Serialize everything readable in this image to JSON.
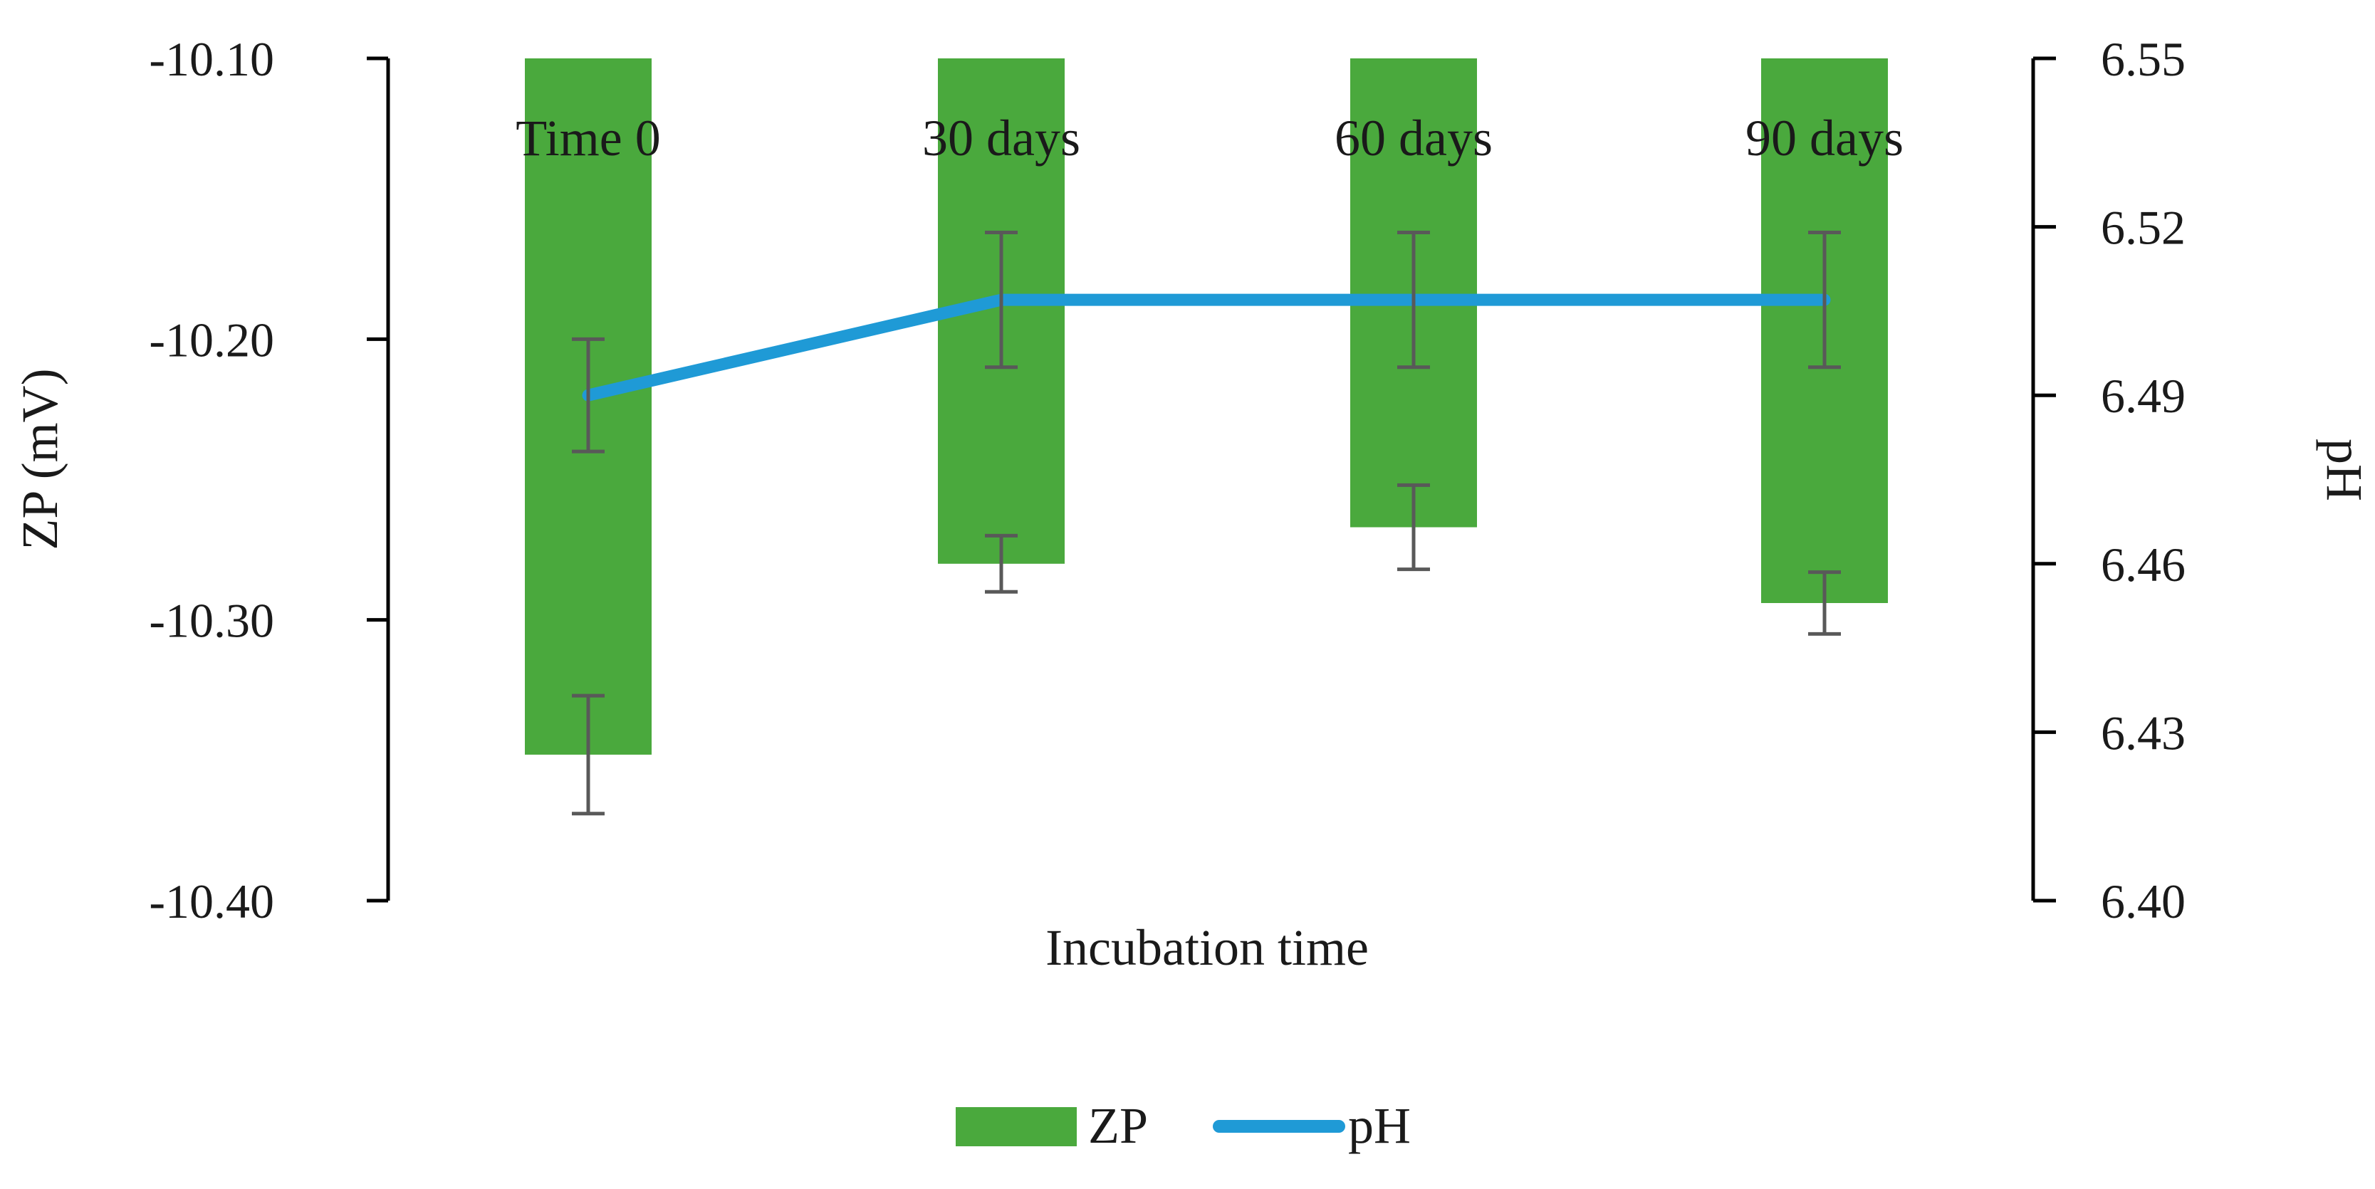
{
  "chart_data": {
    "type": "bar",
    "categories": [
      "Time 0",
      "30 days",
      "60 days",
      "90 days"
    ],
    "series": [
      {
        "name": "ZP",
        "kind": "bar",
        "axis": "left",
        "values": [
          -10.348,
          -10.28,
          -10.267,
          -10.294
        ],
        "error": [
          0.021,
          0.01,
          0.015,
          0.011
        ],
        "color": "#4aa93d"
      },
      {
        "name": "pH",
        "kind": "line",
        "axis": "right",
        "values": [
          6.49,
          6.507,
          6.507,
          6.507
        ],
        "error": [
          0.01,
          0.012,
          0.012,
          0.012
        ],
        "color": "#1f9ad6"
      }
    ],
    "y_left": {
      "label": "ZP (mV)",
      "range": [
        -10.4,
        -10.1
      ],
      "ticks": [
        -10.1,
        -10.2,
        -10.3,
        -10.4
      ],
      "tick_labels": [
        "-10.10",
        "-10.20",
        "-10.30",
        "-10.40"
      ]
    },
    "y_right": {
      "label": "pH",
      "range": [
        6.4,
        6.55
      ],
      "ticks": [
        6.55,
        6.52,
        6.49,
        6.46,
        6.43,
        6.4
      ],
      "tick_labels": [
        "6.55",
        "6.52",
        "6.49",
        "6.46",
        "6.43",
        "6.40"
      ]
    },
    "xlabel": "Incubation time",
    "legend": {
      "position": "bottom",
      "entries": [
        "ZP",
        "pH"
      ]
    },
    "grid": false,
    "error_bar_color": "#595959",
    "axis_color": "#000000"
  }
}
